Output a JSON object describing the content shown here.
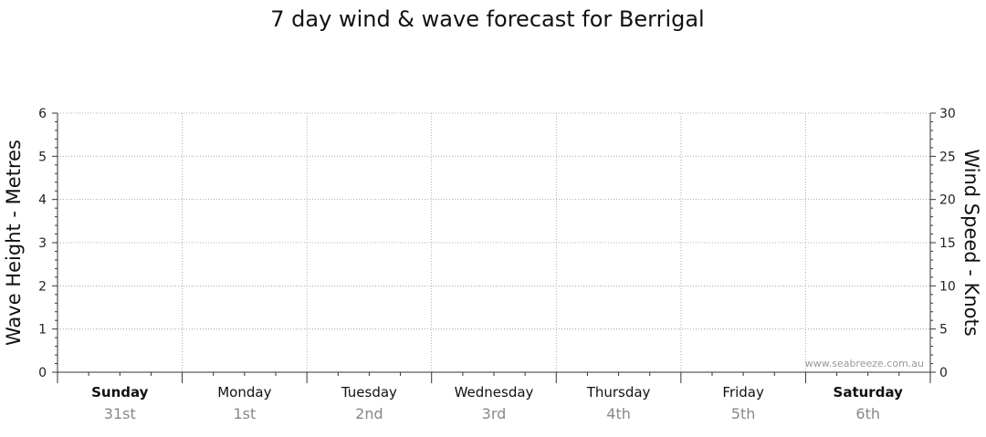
{
  "chart_data": {
    "type": "line",
    "title": "7 day wind & wave forecast for Berrigal",
    "left_axis": {
      "label": "Wave Height - Metres",
      "ylim": [
        0,
        6
      ],
      "ticks": [
        0,
        1,
        2,
        3,
        4,
        5,
        6
      ]
    },
    "right_axis": {
      "label": "Wind Speed - Knots",
      "ylim": [
        0,
        30
      ],
      "ticks": [
        0,
        5,
        10,
        15,
        20,
        25,
        30
      ]
    },
    "categories": [
      {
        "day": "Sunday",
        "date": "31st",
        "bold": true
      },
      {
        "day": "Monday",
        "date": "1st",
        "bold": false
      },
      {
        "day": "Tuesday",
        "date": "2nd",
        "bold": false
      },
      {
        "day": "Wednesday",
        "date": "3rd",
        "bold": false
      },
      {
        "day": "Thursday",
        "date": "4th",
        "bold": false
      },
      {
        "day": "Friday",
        "date": "5th",
        "bold": false
      },
      {
        "day": "Saturday",
        "date": "6th",
        "bold": true
      }
    ],
    "series": [],
    "grid": true,
    "watermark": "www.seabreeze.com.au"
  }
}
